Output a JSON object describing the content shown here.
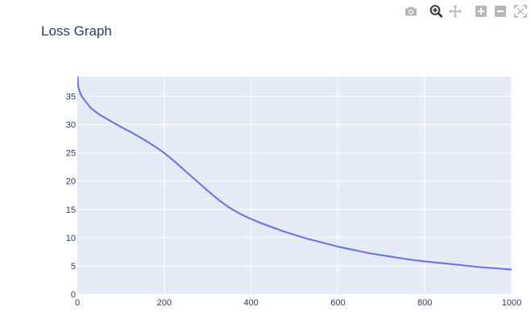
{
  "modebar": {
    "icons": [
      "camera-icon",
      "zoom-icon",
      "pan-icon",
      "zoom-in-icon",
      "zoom-out-icon",
      "autoscale-icon"
    ],
    "active": "zoom-icon",
    "icon_color": "#b3b6bf",
    "active_color": "#444444"
  },
  "chart_data": {
    "type": "line",
    "title": "Loss Graph",
    "xlabel": "",
    "ylabel": "",
    "xlim": [
      0,
      1000
    ],
    "ylim": [
      0,
      38.5
    ],
    "x_ticks": [
      0,
      200,
      400,
      600,
      800,
      1000
    ],
    "y_ticks": [
      0,
      5,
      10,
      15,
      20,
      25,
      30,
      35
    ],
    "grid": true,
    "plot_bgcolor": "#e5ecf6",
    "line_color": "#636efa",
    "series": [
      {
        "x": [
          0,
          2,
          5,
          10,
          20,
          30,
          50,
          75,
          100,
          125,
          150,
          175,
          200,
          225,
          250,
          275,
          300,
          325,
          350,
          375,
          400,
          425,
          450,
          475,
          500,
          525,
          550,
          575,
          600,
          625,
          650,
          675,
          700,
          725,
          750,
          775,
          800,
          825,
          850,
          875,
          900,
          925,
          950,
          975,
          1000
        ],
        "y": [
          38.5,
          36.8,
          35.9,
          35.0,
          34.0,
          33.0,
          31.8,
          30.7,
          29.6,
          28.6,
          27.5,
          26.3,
          25.0,
          23.4,
          21.7,
          20.0,
          18.3,
          16.7,
          15.3,
          14.2,
          13.3,
          12.5,
          11.8,
          11.1,
          10.5,
          9.9,
          9.4,
          8.9,
          8.4,
          8.0,
          7.6,
          7.2,
          6.9,
          6.6,
          6.3,
          6.0,
          5.8,
          5.6,
          5.4,
          5.2,
          5.0,
          4.8,
          4.65,
          4.5,
          4.35
        ]
      }
    ]
  }
}
